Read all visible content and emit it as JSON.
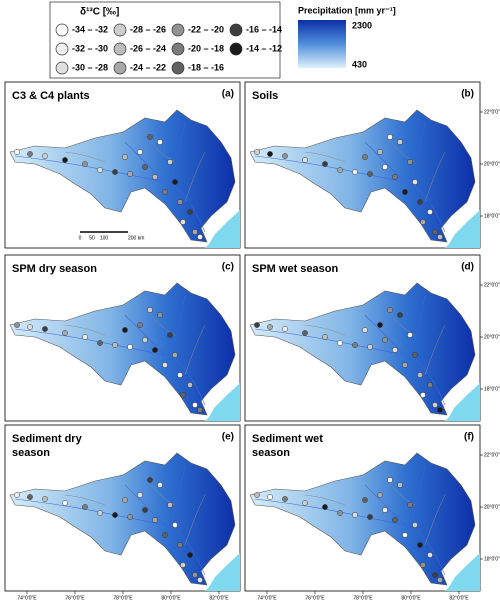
{
  "legend": {
    "title": "δ¹³C [‰]",
    "items": [
      {
        "label": "-34 – -32",
        "color": "#ffffff"
      },
      {
        "label": "-32 – -30",
        "color": "#f0f0f0"
      },
      {
        "label": "-30 – -28",
        "color": "#e0e0e0"
      },
      {
        "label": "-28 – -26",
        "color": "#cfcfcf"
      },
      {
        "label": "-26 – -24",
        "color": "#bdbdbd"
      },
      {
        "label": "-24 – -22",
        "color": "#a8a8a8"
      },
      {
        "label": "-22 – -20",
        "color": "#939393"
      },
      {
        "label": "-20 – -18",
        "color": "#7c7c7c"
      },
      {
        "label": "-18 – -16",
        "color": "#626262"
      },
      {
        "label": "-16 – -14",
        "color": "#3e3e3e"
      },
      {
        "label": "-14 – -12",
        "color": "#1a1a1a"
      }
    ]
  },
  "precipitation": {
    "title": "Precipitation [mm yr⁻¹]",
    "max": "2300",
    "min": "430"
  },
  "panels": [
    {
      "title": [
        "C3 & C4 plants"
      ],
      "letter": "(a)"
    },
    {
      "title": [
        "Soils"
      ],
      "letter": "(b)"
    },
    {
      "title": [
        "SPM dry season"
      ],
      "letter": "(c)"
    },
    {
      "title": [
        "SPM wet season"
      ],
      "letter": "(d)"
    },
    {
      "title": [
        "Sediment dry",
        "season"
      ],
      "letter": "(e)"
    },
    {
      "title": [
        "Sediment wet",
        "season"
      ],
      "letter": "(f)"
    }
  ],
  "latitudes": [
    "22°0'0\"N",
    "20°0'0\"N",
    "18°0'0\"N"
  ],
  "longitudes": [
    "74°0'0\"E",
    "76°0'0\"E",
    "78°0'0\"E",
    "80°0'0\"E",
    "82°0'0\"E"
  ],
  "scale_bar": [
    "0",
    "50",
    "100",
    "200 km"
  ]
}
